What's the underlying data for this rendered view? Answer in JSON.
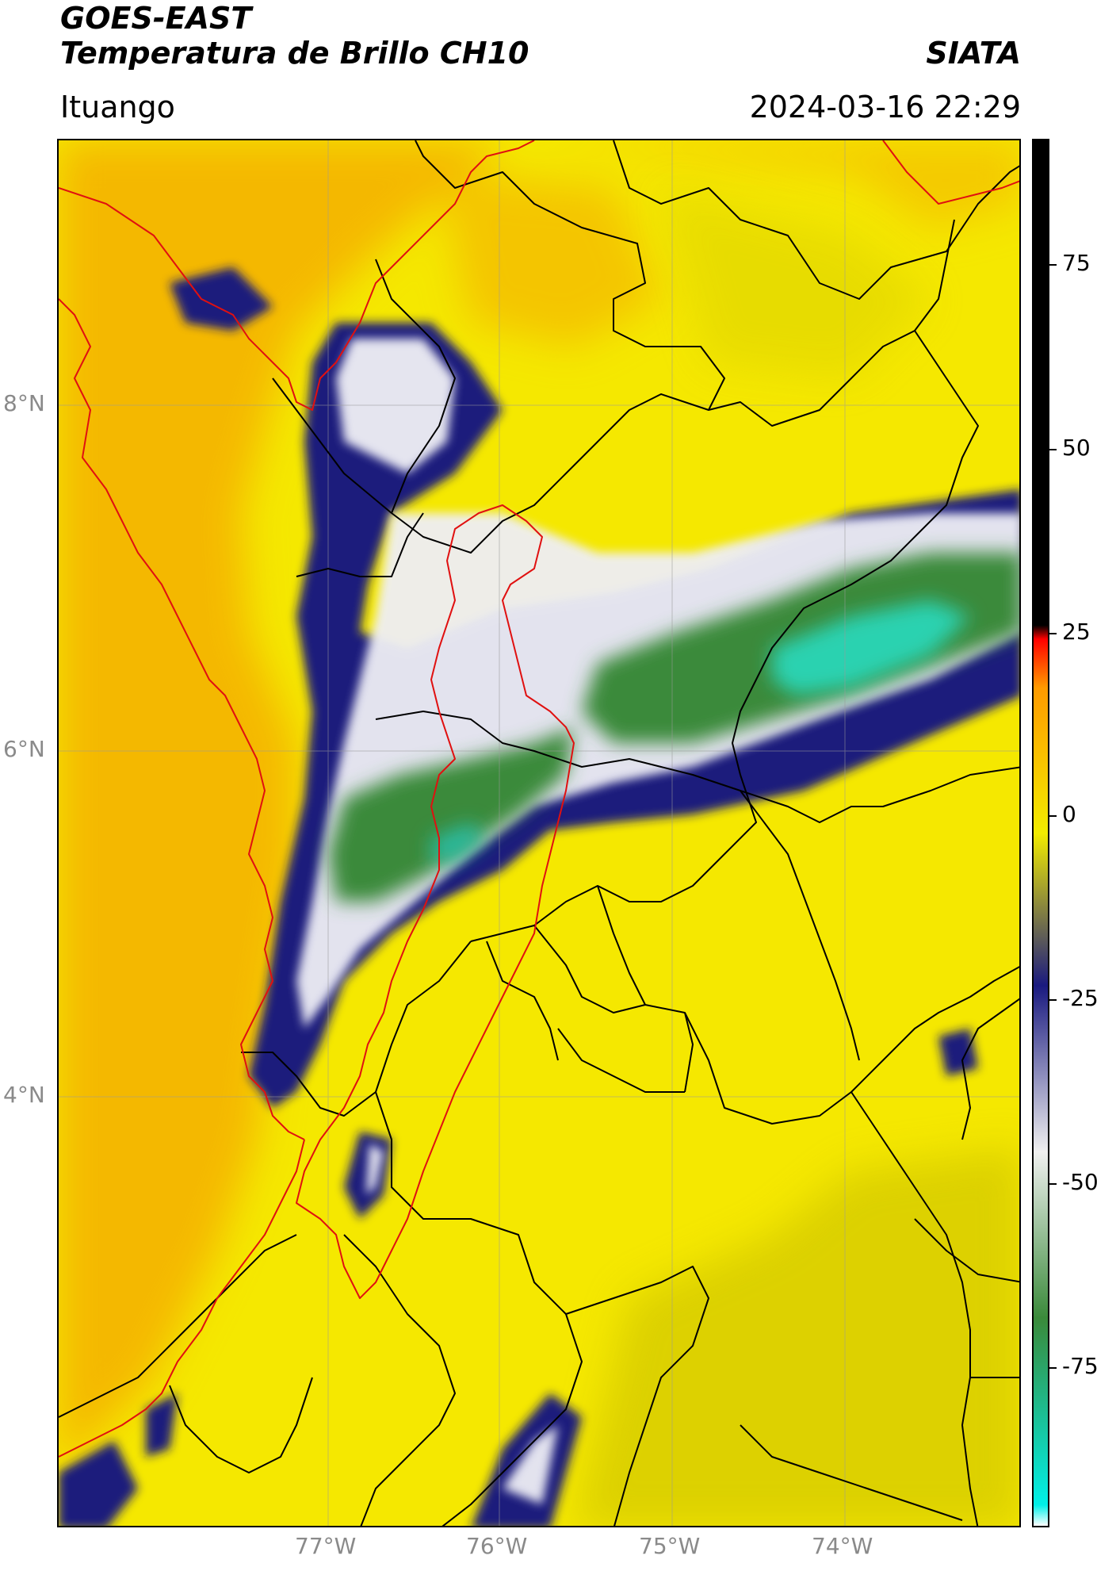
{
  "header": {
    "title_line1": "GOES-EAST",
    "title_line2": "Temperatura de Brillo CH10",
    "agency": "SIATA",
    "location": "Ituango",
    "timestamp": "2024-03-16 22:29"
  },
  "map": {
    "lon_labels": [
      "77°W",
      "76°W",
      "75°W",
      "74°W"
    ],
    "lat_labels": [
      "8°N",
      "6°N",
      "4°N"
    ],
    "colors": {
      "background_warm": "#f5e800",
      "coast_sea": "#f4b600",
      "coastline": "#e01010",
      "region_outline": "#e01010",
      "boundaries": "#000000",
      "cold_navy": "#1e1f7c",
      "cold_white": "#f0f0f6",
      "cold_green": "#3b8a3a",
      "coldest_teal": "#2bd2b0"
    }
  },
  "colorbar": {
    "labels": [
      "75",
      "50",
      "25",
      "0",
      "-25",
      "-50",
      "-75"
    ],
    "stops": [
      {
        "color": "#ffffff"
      },
      {
        "color": "#00f0e8"
      },
      {
        "color": "#3a8a3a"
      },
      {
        "color": "#f0f0f0"
      },
      {
        "color": "#1a1a80"
      },
      {
        "color": "#f2ec00"
      },
      {
        "color": "#ff9a00"
      },
      {
        "color": "#ff0000"
      },
      {
        "color": "#000000"
      }
    ]
  }
}
